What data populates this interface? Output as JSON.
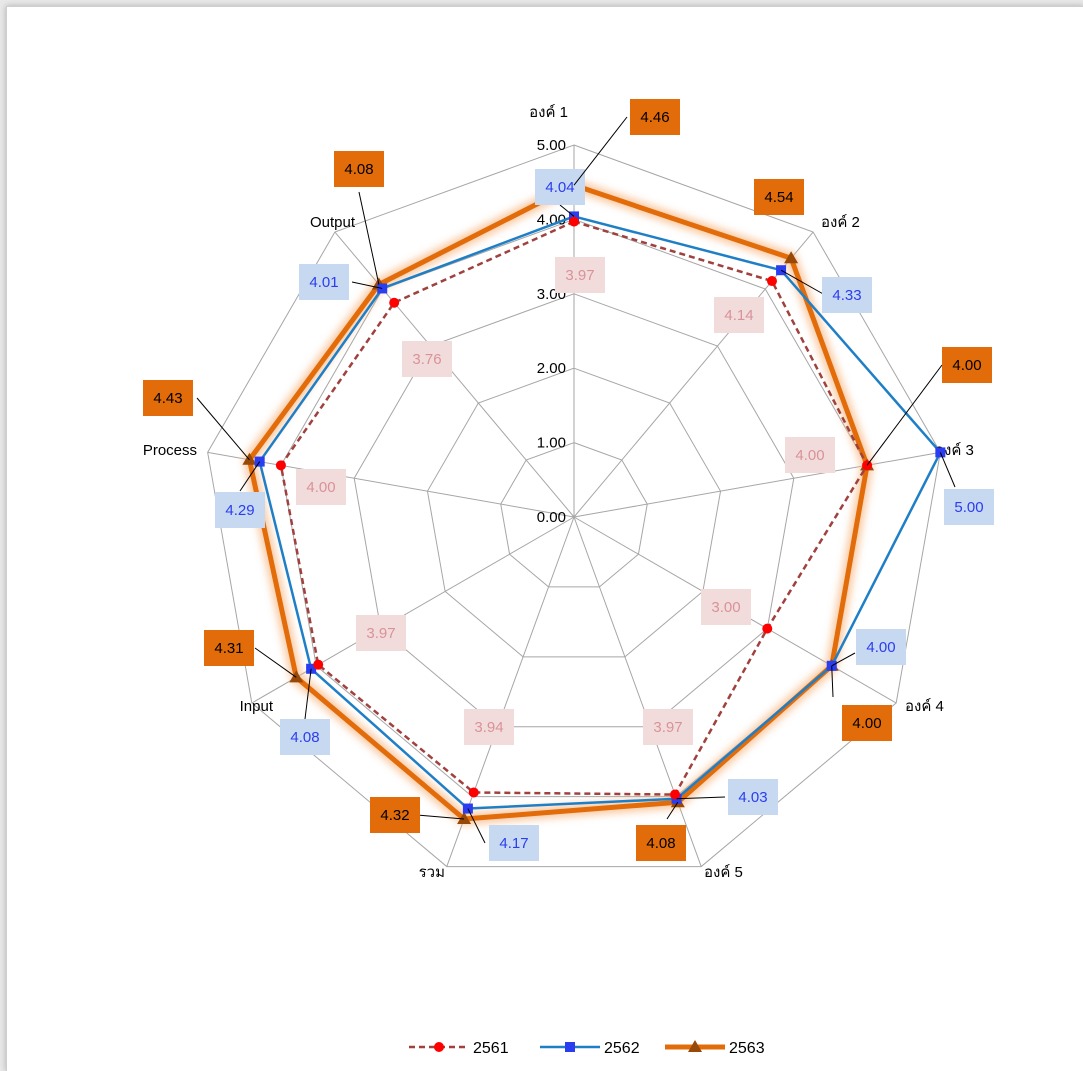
{
  "chart_data": {
    "type": "radar",
    "categories": [
      "องค์ 1",
      "องค์ 2",
      "องค์ 3",
      "องค์ 4",
      "องค์ 5",
      "รวม",
      "Input",
      "Process",
      "Output"
    ],
    "ylim": [
      0,
      5
    ],
    "ticks": [
      "0.00",
      "1.00",
      "2.00",
      "3.00",
      "4.00",
      "5.00"
    ],
    "grid": true,
    "legend_position": "bottom",
    "series": [
      {
        "name": "2561",
        "values": [
          3.97,
          4.14,
          4.0,
          3.0,
          3.97,
          3.94,
          3.97,
          4.0,
          3.76
        ],
        "labels": [
          "3.97",
          "4.14",
          "4.00",
          "3.00",
          "3.97",
          "3.94",
          "3.97",
          "4.00",
          "3.76"
        ],
        "color": "#a0413e",
        "marker": "circle",
        "marker_color": "#ff0000",
        "label_bg": "#f2dcdb",
        "label_color": "#d9929a",
        "dash": "6,4"
      },
      {
        "name": "2562",
        "values": [
          4.04,
          4.33,
          5.0,
          4.0,
          4.03,
          4.17,
          4.08,
          4.29,
          4.01
        ],
        "labels": [
          "4.04",
          "4.33",
          "5.00",
          "4.00",
          "4.03",
          "4.17",
          "4.08",
          "4.29",
          "4.01"
        ],
        "color": "#1f7fc6",
        "marker": "square",
        "marker_color": "#2b3df0",
        "label_bg": "#c6d9f1",
        "label_color": "#2b3df0",
        "dash": ""
      },
      {
        "name": "2563",
        "values": [
          4.46,
          4.54,
          4.0,
          4.0,
          4.08,
          4.32,
          4.31,
          4.43,
          4.08
        ],
        "labels": [
          "4.46",
          "4.54",
          "4.00",
          "4.00",
          "4.08",
          "4.32",
          "4.31",
          "4.43",
          "4.08"
        ],
        "color": "#e36c0a",
        "marker": "triangle",
        "marker_color": "#984807",
        "label_bg": "#e36c0a",
        "label_color": "#000000",
        "dash": ""
      }
    ]
  }
}
